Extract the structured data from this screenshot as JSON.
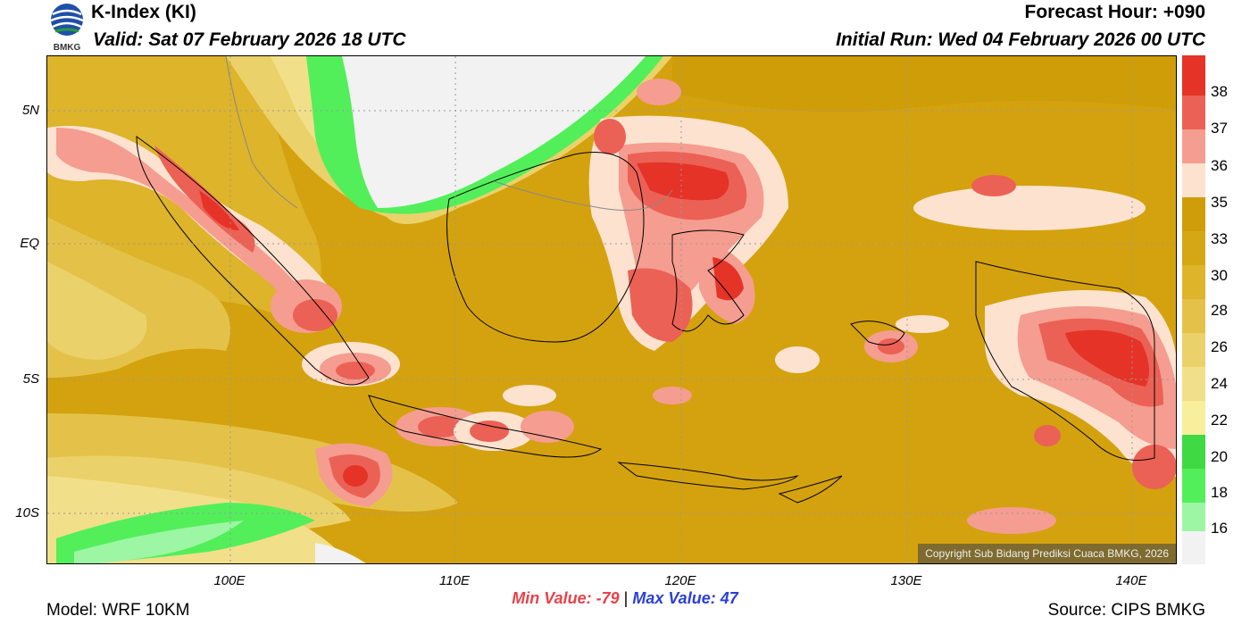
{
  "header": {
    "title": "K-Index (KI)",
    "valid": "Valid: Sat 07 February 2026 18 UTC",
    "forecast_hour": "Forecast Hour: +090",
    "initial_run": "Initial Run: Wed 04 February 2026 00 UTC",
    "logo_text": "BMKG"
  },
  "axes": {
    "y_labels": [
      "5N",
      "EQ",
      "5S",
      "10S"
    ],
    "x_labels": [
      "100E",
      "110E",
      "120E",
      "130E",
      "140E"
    ]
  },
  "colorbar": {
    "labels": [
      "38",
      "37",
      "36",
      "35",
      "33",
      "30",
      "28",
      "26",
      "24",
      "22",
      "20",
      "18",
      "16"
    ],
    "colors": [
      "#e53327",
      "#ec6155",
      "#f59d90",
      "#fde2d0",
      "#cf9d08",
      "#d6a714",
      "#ddb42a",
      "#e4c24a",
      "#ebd16a",
      "#f2df8a",
      "#f8ee9c",
      "#3ed943",
      "#52ef5a",
      "#9df6a4",
      "#f2f2f2"
    ]
  },
  "stats": {
    "min_label": "Min Value:",
    "min_value": "-79",
    "separator": "|",
    "max_label": "Max Value:",
    "max_value": "47"
  },
  "footer": {
    "model": "Model: WRF 10KM",
    "source": "Source: CIPS BMKG",
    "copyright": "Copyright Sub Bidang Prediksi Cuaca BMKG, 2026"
  }
}
